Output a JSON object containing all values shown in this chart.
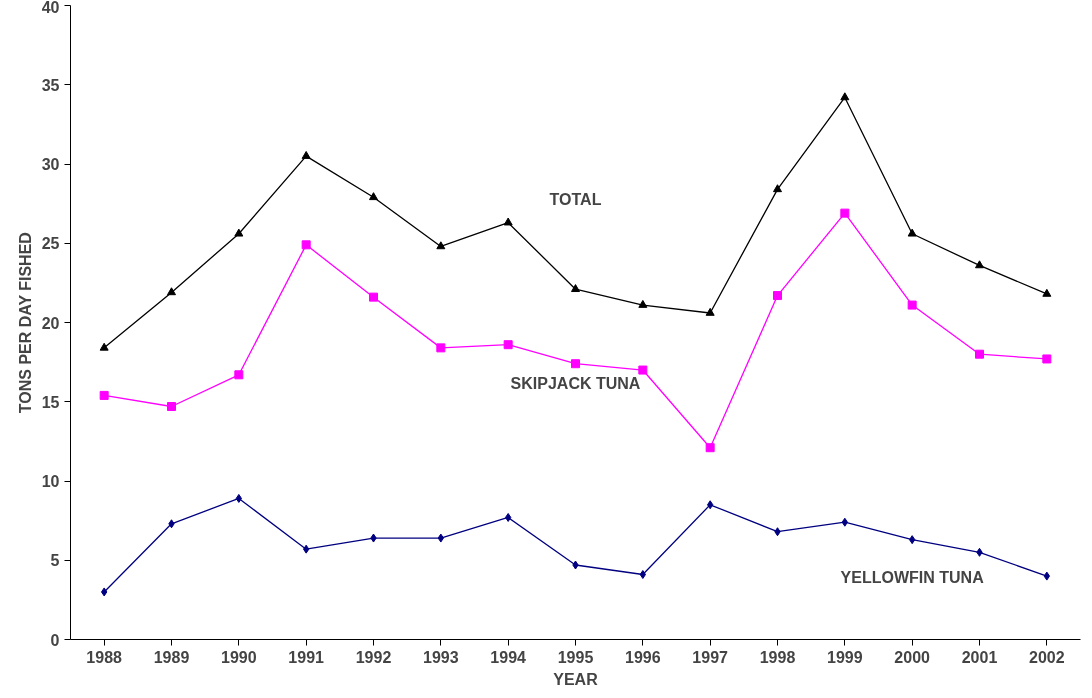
{
  "chart_data": {
    "type": "line",
    "xlabel": "YEAR",
    "ylabel": "TONS PER DAY FISHED",
    "categories": [
      "1988",
      "1989",
      "1990",
      "1991",
      "1992",
      "1993",
      "1994",
      "1995",
      "1996",
      "1997",
      "1998",
      "1999",
      "2000",
      "2001",
      "2002"
    ],
    "series": [
      {
        "name": "TOTAL",
        "color": "#000000",
        "marker": "triangle",
        "values": [
          18.4,
          21.9,
          25.6,
          30.5,
          27.9,
          24.8,
          26.3,
          22.1,
          21.1,
          20.6,
          28.4,
          34.2,
          25.6,
          23.6,
          21.8
        ]
      },
      {
        "name": "SKIPJACK TUNA",
        "color": "#ff00ff",
        "marker": "square",
        "values": [
          15.4,
          14.7,
          16.7,
          24.9,
          21.6,
          18.4,
          18.6,
          17.4,
          17.0,
          12.1,
          21.7,
          26.9,
          21.1,
          18.0,
          17.7
        ]
      },
      {
        "name": "YELLOWFIN TUNA",
        "color": "#000080",
        "marker": "diamond",
        "values": [
          3.0,
          7.3,
          8.9,
          5.7,
          6.4,
          6.4,
          7.7,
          4.7,
          4.1,
          8.5,
          6.8,
          7.4,
          6.3,
          5.5,
          4.0
        ]
      }
    ],
    "ylim": [
      0,
      40
    ],
    "yticks": [
      0,
      5,
      10,
      15,
      20,
      25,
      30,
      35,
      40
    ],
    "grid": false
  }
}
